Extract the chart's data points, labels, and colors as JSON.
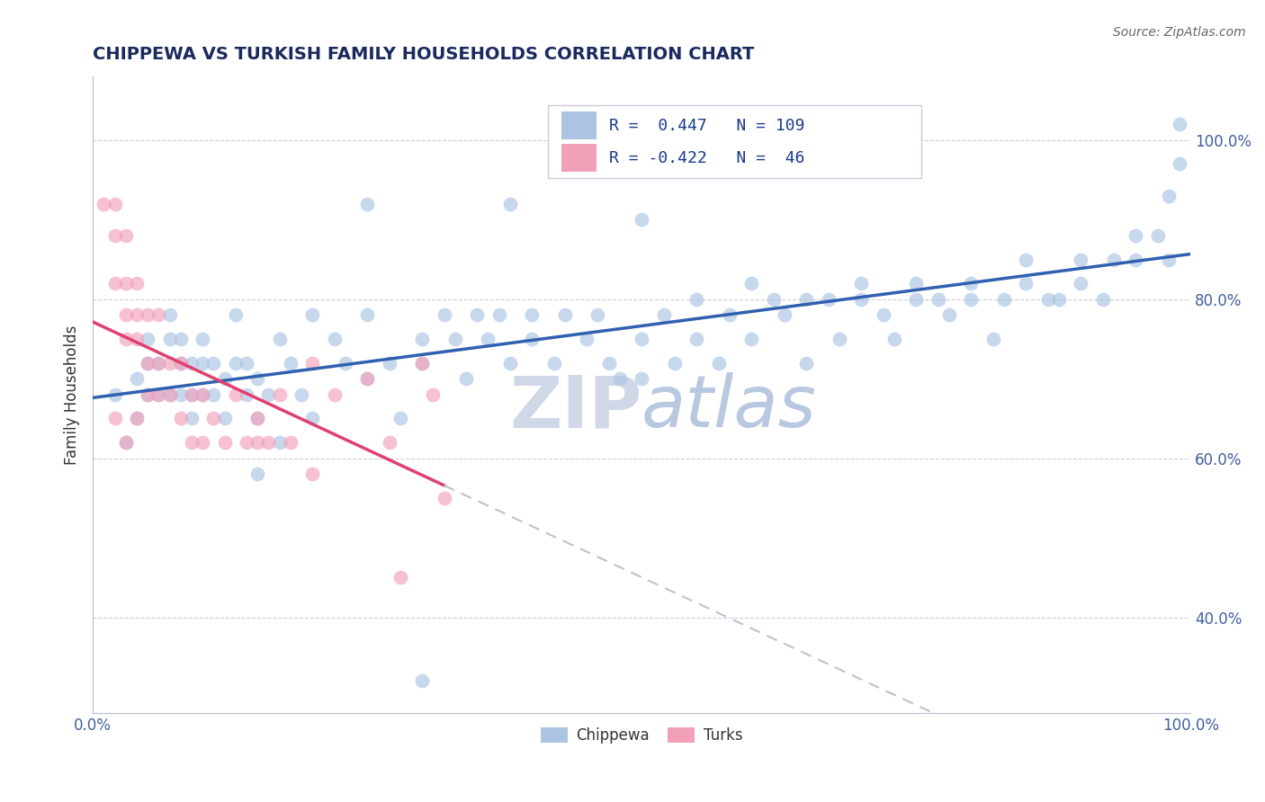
{
  "title": "CHIPPEWA VS TURKISH FAMILY HOUSEHOLDS CORRELATION CHART",
  "source_text": "Source: ZipAtlas.com",
  "ylabel": "Family Households",
  "xlim": [
    0.0,
    1.0
  ],
  "ylim": [
    0.28,
    1.08
  ],
  "xticks": [
    0.0,
    1.0
  ],
  "xtick_labels": [
    "0.0%",
    "100.0%"
  ],
  "yticks": [
    0.4,
    0.6,
    0.8,
    1.0
  ],
  "ytick_labels": [
    "40.0%",
    "60.0%",
    "80.0%",
    "100.0%"
  ],
  "chippewa_R": 0.447,
  "chippewa_N": 109,
  "turks_R": -0.422,
  "turks_N": 46,
  "chippewa_color": "#aac4e2",
  "turks_color": "#f2a0b8",
  "chippewa_line_color": "#3060b0",
  "turks_line_color": "#e04070",
  "turks_line_dash_color": "#c0c0d0",
  "background_color": "#ffffff",
  "grid_color": "#ccccdd",
  "watermark_color": "#d0d8e8",
  "chippewa_points": [
    [
      0.02,
      0.68
    ],
    [
      0.03,
      0.62
    ],
    [
      0.04,
      0.65
    ],
    [
      0.04,
      0.7
    ],
    [
      0.05,
      0.68
    ],
    [
      0.05,
      0.72
    ],
    [
      0.05,
      0.75
    ],
    [
      0.06,
      0.68
    ],
    [
      0.06,
      0.72
    ],
    [
      0.07,
      0.68
    ],
    [
      0.07,
      0.75
    ],
    [
      0.07,
      0.78
    ],
    [
      0.08,
      0.68
    ],
    [
      0.08,
      0.72
    ],
    [
      0.08,
      0.75
    ],
    [
      0.09,
      0.65
    ],
    [
      0.09,
      0.68
    ],
    [
      0.09,
      0.72
    ],
    [
      0.1,
      0.68
    ],
    [
      0.1,
      0.72
    ],
    [
      0.1,
      0.75
    ],
    [
      0.11,
      0.68
    ],
    [
      0.11,
      0.72
    ],
    [
      0.12,
      0.65
    ],
    [
      0.12,
      0.7
    ],
    [
      0.13,
      0.72
    ],
    [
      0.13,
      0.78
    ],
    [
      0.14,
      0.68
    ],
    [
      0.14,
      0.72
    ],
    [
      0.15,
      0.58
    ],
    [
      0.15,
      0.65
    ],
    [
      0.15,
      0.7
    ],
    [
      0.16,
      0.68
    ],
    [
      0.17,
      0.62
    ],
    [
      0.17,
      0.75
    ],
    [
      0.18,
      0.72
    ],
    [
      0.19,
      0.68
    ],
    [
      0.2,
      0.78
    ],
    [
      0.2,
      0.65
    ],
    [
      0.22,
      0.75
    ],
    [
      0.23,
      0.72
    ],
    [
      0.25,
      0.78
    ],
    [
      0.25,
      0.7
    ],
    [
      0.27,
      0.72
    ],
    [
      0.28,
      0.65
    ],
    [
      0.3,
      0.75
    ],
    [
      0.3,
      0.72
    ],
    [
      0.32,
      0.78
    ],
    [
      0.33,
      0.75
    ],
    [
      0.34,
      0.7
    ],
    [
      0.35,
      0.78
    ],
    [
      0.36,
      0.75
    ],
    [
      0.37,
      0.78
    ],
    [
      0.38,
      0.72
    ],
    [
      0.4,
      0.78
    ],
    [
      0.4,
      0.75
    ],
    [
      0.42,
      0.72
    ],
    [
      0.43,
      0.78
    ],
    [
      0.45,
      0.75
    ],
    [
      0.46,
      0.78
    ],
    [
      0.47,
      0.72
    ],
    [
      0.48,
      0.7
    ],
    [
      0.5,
      0.75
    ],
    [
      0.5,
      0.7
    ],
    [
      0.52,
      0.78
    ],
    [
      0.53,
      0.72
    ],
    [
      0.3,
      0.32
    ],
    [
      0.55,
      0.75
    ],
    [
      0.55,
      0.8
    ],
    [
      0.57,
      0.72
    ],
    [
      0.58,
      0.78
    ],
    [
      0.6,
      0.82
    ],
    [
      0.6,
      0.75
    ],
    [
      0.62,
      0.8
    ],
    [
      0.63,
      0.78
    ],
    [
      0.65,
      0.72
    ],
    [
      0.65,
      0.8
    ],
    [
      0.67,
      0.8
    ],
    [
      0.68,
      0.75
    ],
    [
      0.7,
      0.82
    ],
    [
      0.7,
      0.8
    ],
    [
      0.72,
      0.78
    ],
    [
      0.73,
      0.75
    ],
    [
      0.75,
      0.8
    ],
    [
      0.75,
      0.82
    ],
    [
      0.77,
      0.8
    ],
    [
      0.78,
      0.78
    ],
    [
      0.8,
      0.82
    ],
    [
      0.8,
      0.8
    ],
    [
      0.82,
      0.75
    ],
    [
      0.83,
      0.8
    ],
    [
      0.85,
      0.82
    ],
    [
      0.85,
      0.85
    ],
    [
      0.87,
      0.8
    ],
    [
      0.88,
      0.8
    ],
    [
      0.9,
      0.85
    ],
    [
      0.9,
      0.82
    ],
    [
      0.92,
      0.8
    ],
    [
      0.93,
      0.85
    ],
    [
      0.95,
      0.88
    ],
    [
      0.95,
      0.85
    ],
    [
      0.97,
      0.88
    ],
    [
      0.98,
      0.85
    ],
    [
      0.5,
      0.9
    ],
    [
      0.25,
      0.92
    ],
    [
      0.38,
      0.92
    ],
    [
      0.99,
      1.02
    ],
    [
      0.99,
      0.97
    ],
    [
      0.98,
      0.93
    ]
  ],
  "turks_points": [
    [
      0.01,
      0.92
    ],
    [
      0.02,
      0.92
    ],
    [
      0.02,
      0.88
    ],
    [
      0.02,
      0.82
    ],
    [
      0.03,
      0.88
    ],
    [
      0.03,
      0.82
    ],
    [
      0.03,
      0.78
    ],
    [
      0.03,
      0.75
    ],
    [
      0.04,
      0.82
    ],
    [
      0.04,
      0.78
    ],
    [
      0.04,
      0.75
    ],
    [
      0.05,
      0.78
    ],
    [
      0.05,
      0.72
    ],
    [
      0.05,
      0.68
    ],
    [
      0.06,
      0.78
    ],
    [
      0.06,
      0.72
    ],
    [
      0.06,
      0.68
    ],
    [
      0.07,
      0.72
    ],
    [
      0.07,
      0.68
    ],
    [
      0.08,
      0.72
    ],
    [
      0.08,
      0.65
    ],
    [
      0.09,
      0.68
    ],
    [
      0.09,
      0.62
    ],
    [
      0.1,
      0.68
    ],
    [
      0.1,
      0.62
    ],
    [
      0.11,
      0.65
    ],
    [
      0.12,
      0.62
    ],
    [
      0.13,
      0.68
    ],
    [
      0.14,
      0.62
    ],
    [
      0.15,
      0.62
    ],
    [
      0.15,
      0.65
    ],
    [
      0.16,
      0.62
    ],
    [
      0.17,
      0.68
    ],
    [
      0.18,
      0.62
    ],
    [
      0.2,
      0.58
    ],
    [
      0.2,
      0.72
    ],
    [
      0.22,
      0.68
    ],
    [
      0.25,
      0.7
    ],
    [
      0.27,
      0.62
    ],
    [
      0.28,
      0.45
    ],
    [
      0.3,
      0.72
    ],
    [
      0.31,
      0.68
    ],
    [
      0.32,
      0.55
    ],
    [
      0.02,
      0.65
    ],
    [
      0.03,
      0.62
    ],
    [
      0.04,
      0.65
    ]
  ]
}
